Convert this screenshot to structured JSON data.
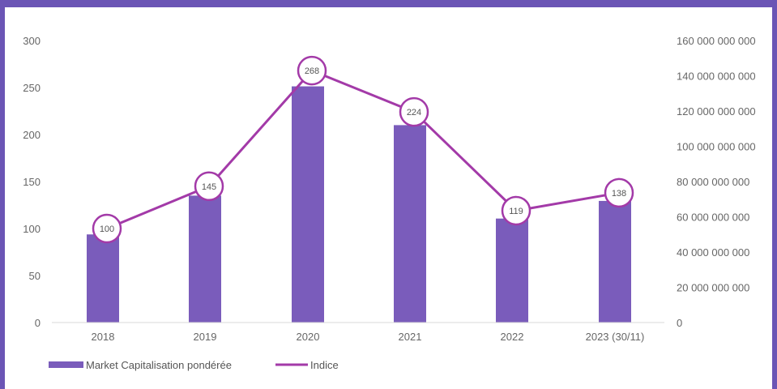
{
  "chart_data": {
    "type": "bar",
    "categories": [
      "2018",
      "2019",
      "2020",
      "2021",
      "2022",
      "2023 (30/11)"
    ],
    "series": [
      {
        "name": "Market Capitalisation pondérée",
        "type": "bar",
        "axis": "right",
        "values": [
          50000000000,
          72000000000,
          134000000000,
          112000000000,
          59000000000,
          69000000000
        ],
        "color": "#7a5cbb"
      },
      {
        "name": "Indice",
        "type": "line",
        "axis": "left",
        "values": [
          100,
          145,
          268,
          224,
          119,
          138
        ],
        "data_labels": [
          "100",
          "145",
          "268",
          "224",
          "119",
          "138"
        ],
        "color": "#a33aa8"
      }
    ],
    "left_axis": {
      "ylim": [
        0,
        300
      ],
      "ticks": [
        0,
        50,
        100,
        150,
        200,
        250,
        300
      ],
      "tick_labels": [
        "0",
        "50",
        "100",
        "150",
        "200",
        "250",
        "300"
      ]
    },
    "right_axis": {
      "ylim": [
        0,
        160000000000
      ],
      "ticks": [
        0,
        20000000000,
        40000000000,
        60000000000,
        80000000000,
        100000000000,
        120000000000,
        140000000000,
        160000000000
      ],
      "tick_labels": [
        "0",
        "20 000 000 000",
        "40 000 000 000",
        "60 000 000 000",
        "80 000 000 000",
        "100 000 000 000",
        "120 000 000 000",
        "140 000 000 000",
        "160 000 000 000"
      ]
    },
    "legend_position": "bottom-left",
    "grid": false
  }
}
